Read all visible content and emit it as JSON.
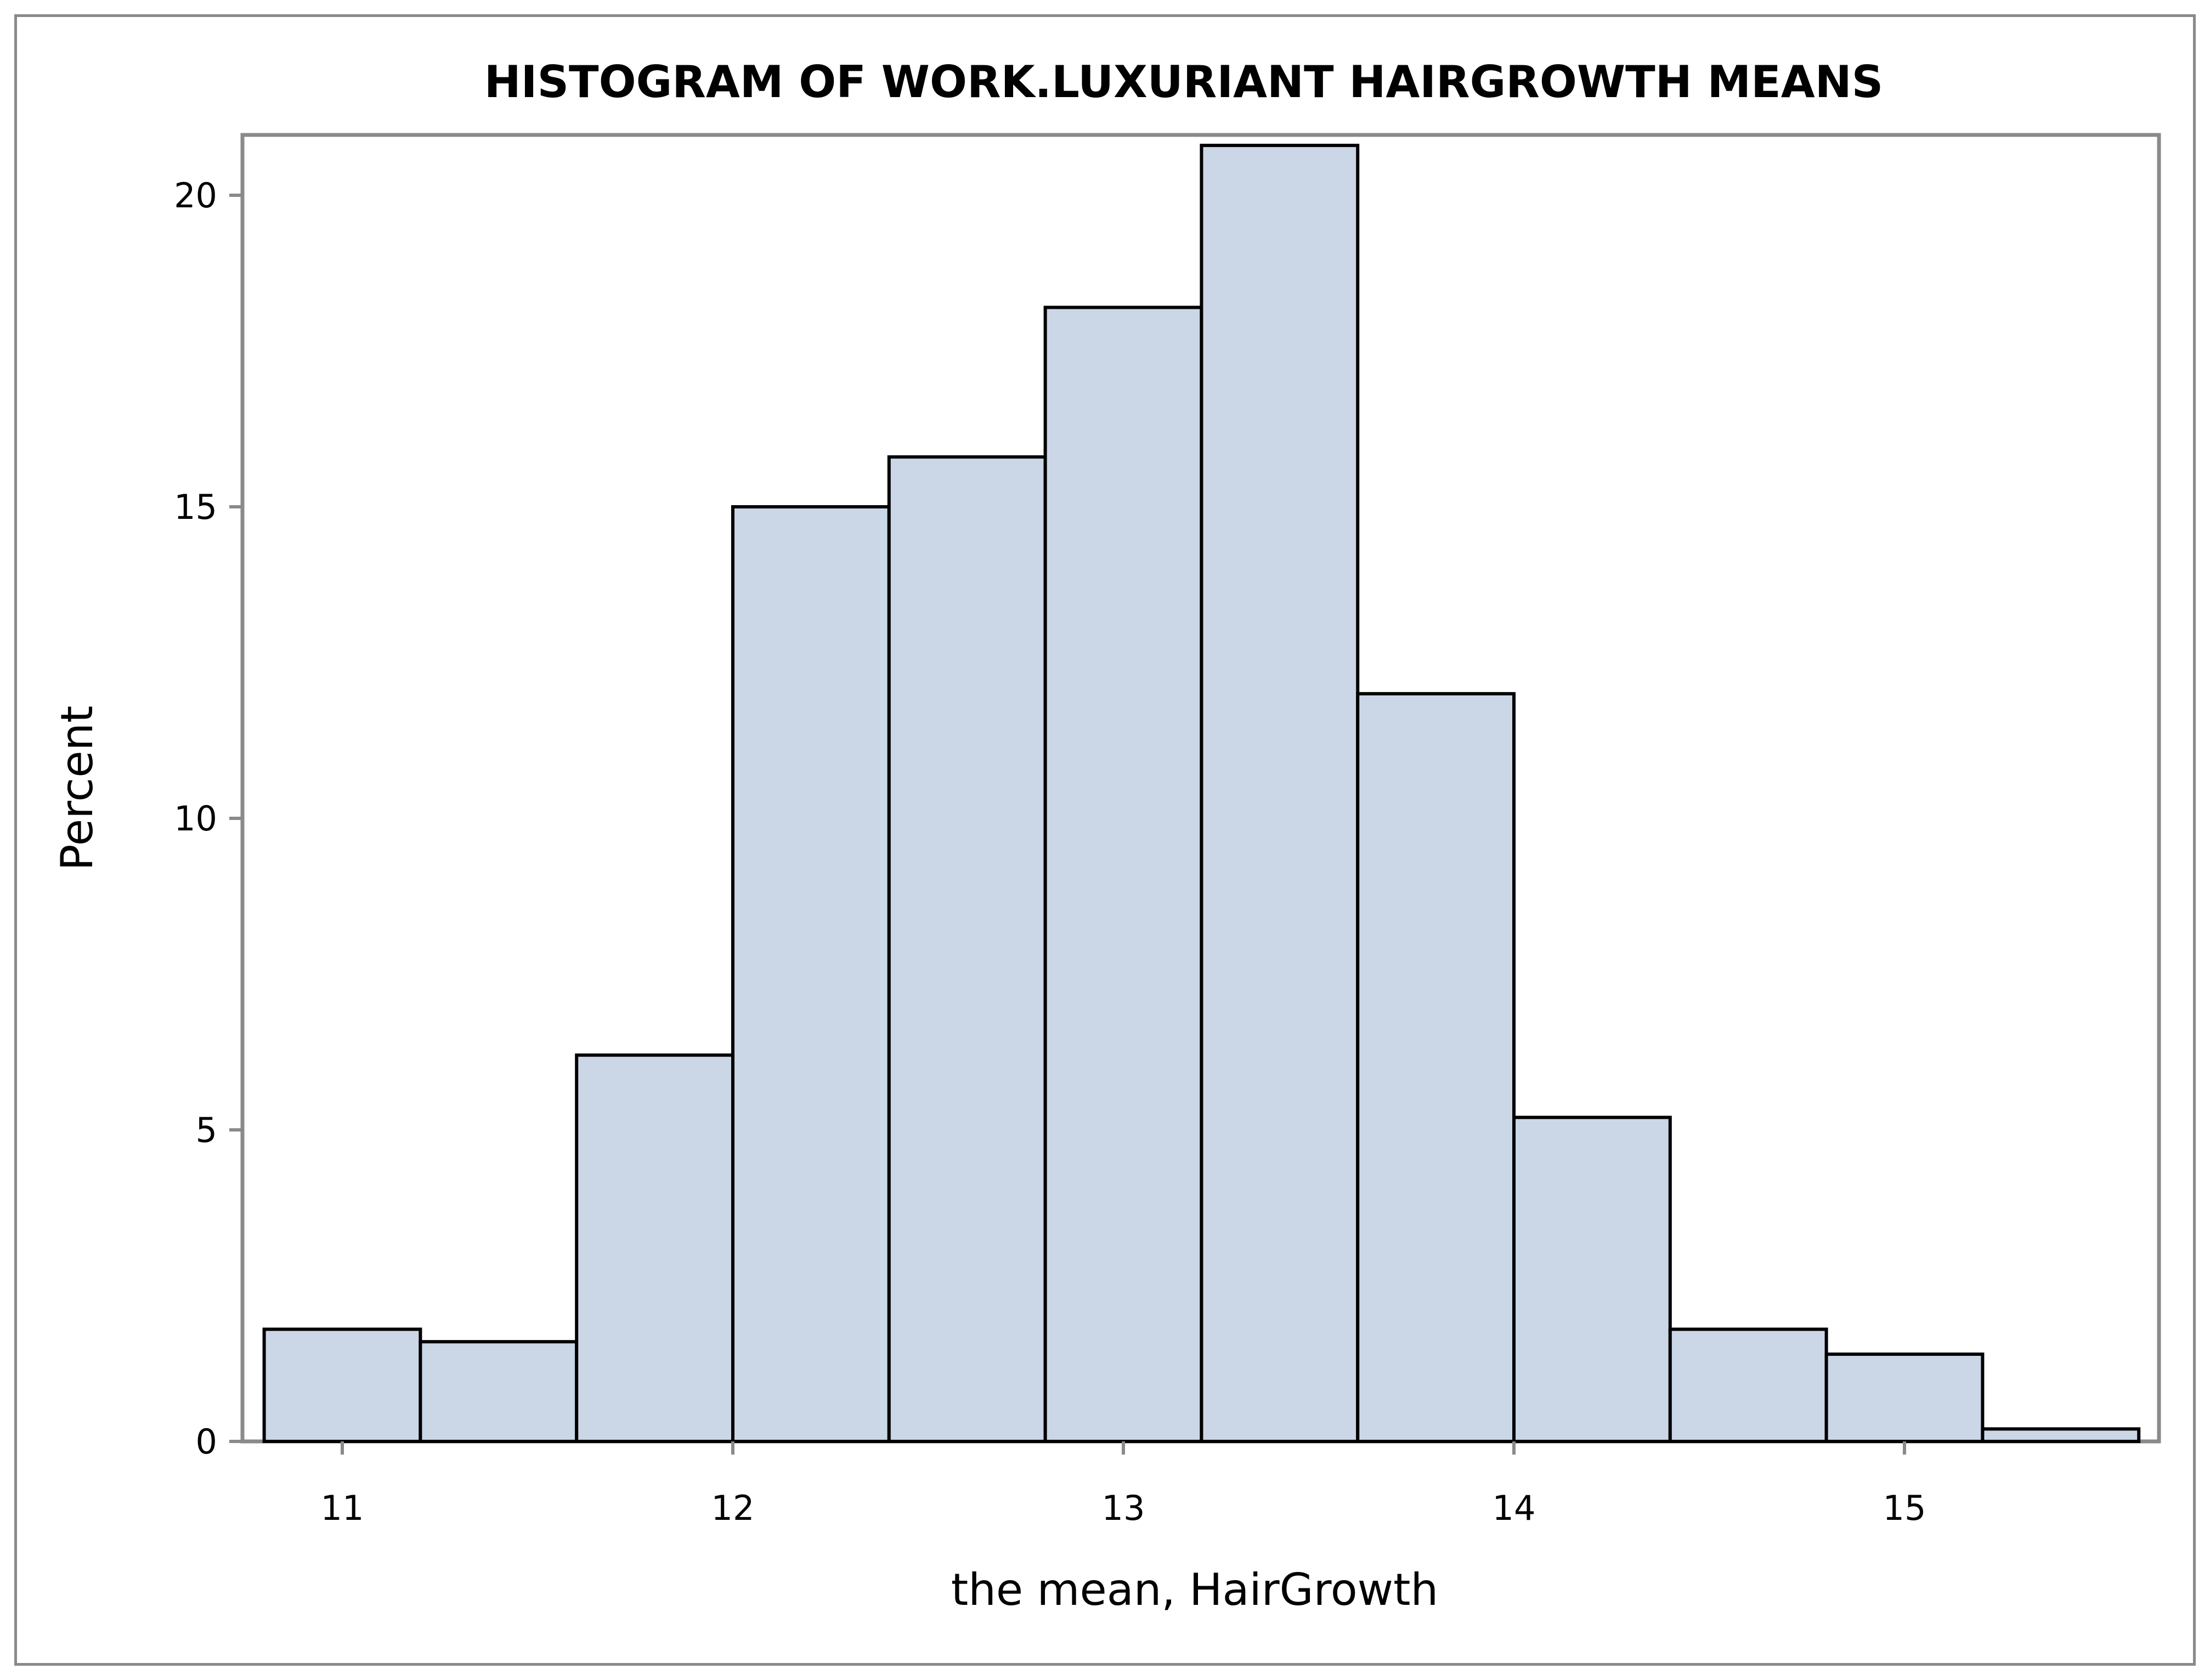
{
  "chart_data": {
    "type": "bar",
    "title": "HISTOGRAM OF WORK.LUXURIANT HAIRGROWTH MEANS",
    "xlabel": "the mean, HairGrowth",
    "ylabel": "Percent",
    "bin_width": 0.4,
    "bins": [
      {
        "start": 10.8,
        "end": 11.2,
        "value": 1.8
      },
      {
        "start": 11.2,
        "end": 11.6,
        "value": 1.6
      },
      {
        "start": 11.6,
        "end": 12.0,
        "value": 6.2
      },
      {
        "start": 12.0,
        "end": 12.4,
        "value": 15.0
      },
      {
        "start": 12.4,
        "end": 12.8,
        "value": 15.8
      },
      {
        "start": 12.8,
        "end": 13.2,
        "value": 18.2
      },
      {
        "start": 13.2,
        "end": 13.6,
        "value": 20.8
      },
      {
        "start": 13.6,
        "end": 14.0,
        "value": 12.0
      },
      {
        "start": 14.0,
        "end": 14.4,
        "value": 5.2
      },
      {
        "start": 14.4,
        "end": 14.8,
        "value": 1.8
      },
      {
        "start": 14.8,
        "end": 15.2,
        "value": 1.4
      },
      {
        "start": 15.2,
        "end": 15.6,
        "value": 0.2
      }
    ],
    "xlim": [
      10.75,
      15.67
    ],
    "ylim": [
      0,
      21.0
    ],
    "x_ticks": [
      11,
      12,
      13,
      14,
      15
    ],
    "y_ticks": [
      0,
      5,
      10,
      15,
      20
    ],
    "grid": false,
    "legend": "none",
    "colors": {
      "bar_fill": "#cbd6e6",
      "bar_stroke": "#000000",
      "frame": "#8a8a8a",
      "axis": "#8a8a8a"
    }
  }
}
